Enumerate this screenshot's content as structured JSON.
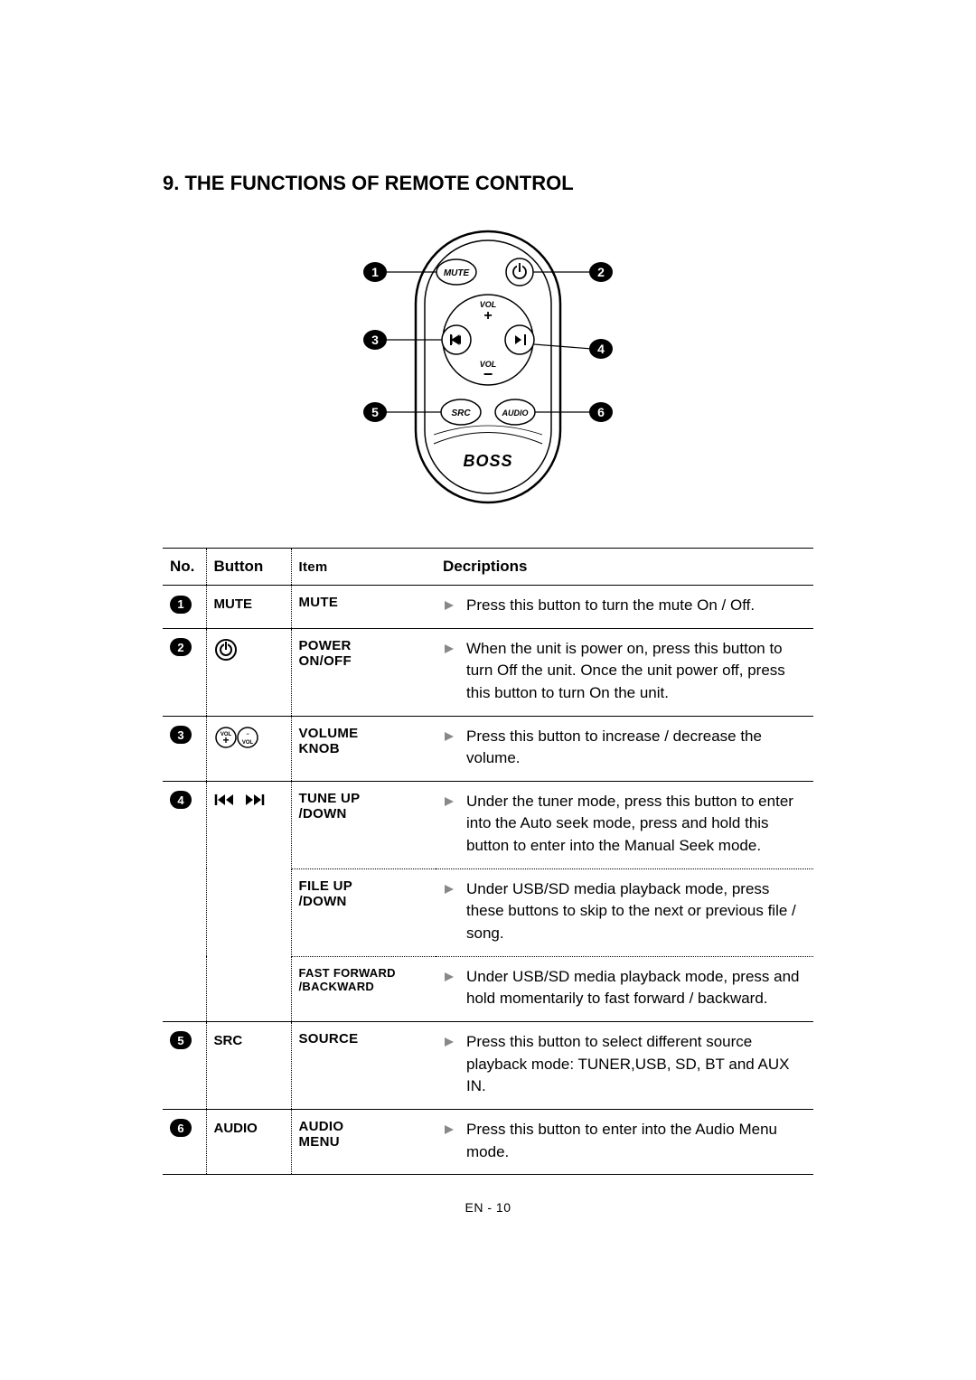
{
  "title": "9. THE FUNCTIONS OF REMOTE CONTROL",
  "remote": {
    "brand": "BOSS",
    "buttons": {
      "mute": "MUTE",
      "vol_plus": "VOL",
      "vol_minus": "VOL",
      "src": "SRC",
      "audio": "AUDIO"
    },
    "labels": [
      "1",
      "2",
      "3",
      "4",
      "5",
      "6"
    ]
  },
  "table": {
    "headers": {
      "no": "No.",
      "button": "Button",
      "item": "Item",
      "desc": "Decriptions"
    },
    "rows": [
      {
        "no": "1",
        "button_text": "MUTE",
        "items": [
          {
            "item": "MUTE",
            "desc": "Press this button to turn the mute On / Off."
          }
        ]
      },
      {
        "no": "2",
        "button_icon": "power",
        "items": [
          {
            "item": "POWER ON/OFF",
            "desc": "When the unit is power on, press this button to turn Off the unit. Once the unit power off, press this button to turn On the unit."
          }
        ]
      },
      {
        "no": "3",
        "button_icon": "vol",
        "items": [
          {
            "item": "VOLUME KNOB",
            "desc": "Press this button to increase / decrease the volume."
          }
        ]
      },
      {
        "no": "4",
        "button_icon": "seek",
        "items": [
          {
            "item": "TUNE UP /DOWN",
            "desc": "Under the tuner mode, press this button to enter into the Auto seek mode, press and hold this button to enter into the Manual Seek mode."
          },
          {
            "item": "FILE UP /DOWN",
            "desc": "Under USB/SD media playback mode, press these buttons to skip to the next or previous file / song."
          },
          {
            "item": "FAST FORWARD /BACKWARD",
            "small": true,
            "desc": "Under USB/SD media playback mode, press and hold momentarily to fast forward / backward."
          }
        ]
      },
      {
        "no": "5",
        "button_text": "SRC",
        "items": [
          {
            "item": "SOURCE",
            "desc": "Press this button to select different source playback mode: TUNER,USB, SD, BT and AUX IN."
          }
        ]
      },
      {
        "no": "6",
        "button_text": "AUDIO",
        "items": [
          {
            "item": "AUDIO MENU",
            "desc": "Press this button to enter into the Audio Menu mode."
          }
        ]
      }
    ]
  },
  "footer": "EN - 10",
  "colors": {
    "text": "#000000",
    "background": "#ffffff",
    "arrow": "#888888"
  }
}
